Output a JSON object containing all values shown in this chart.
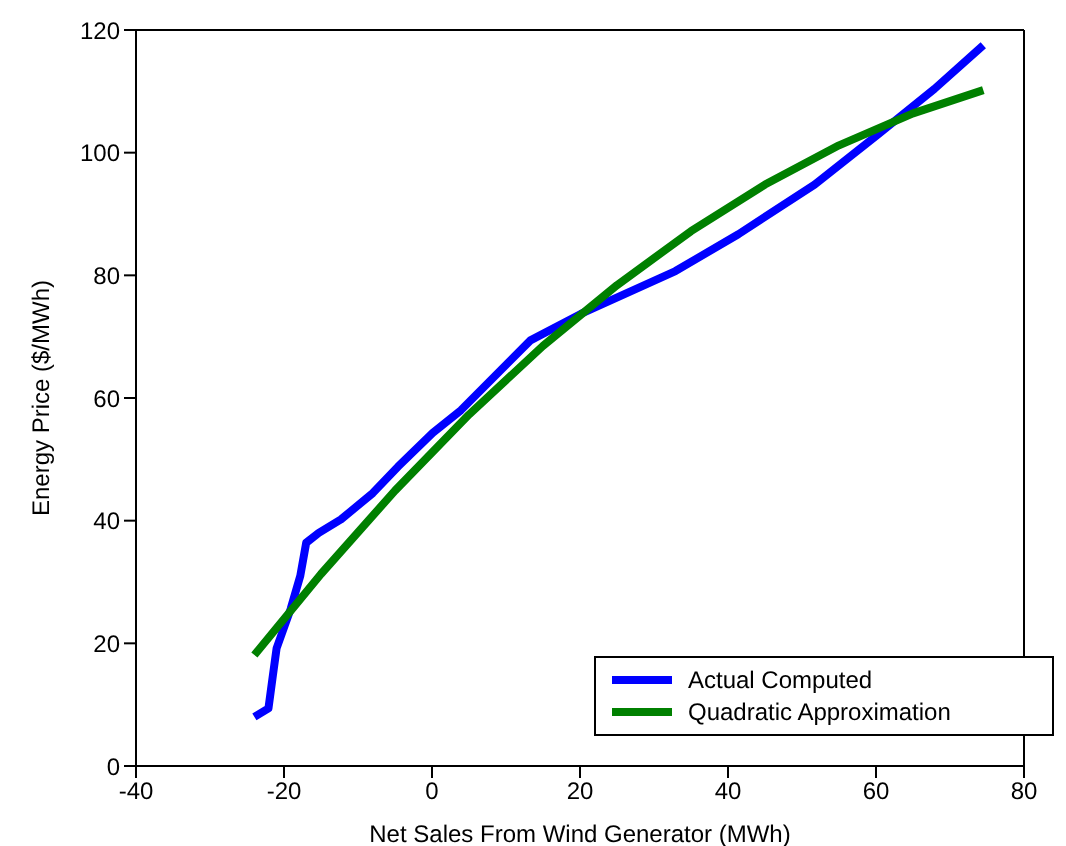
{
  "chart_data": {
    "type": "line",
    "xlabel": "Net Sales From Wind Generator (MWh)",
    "ylabel": "Energy Price ($/MWh)",
    "xlim": [
      -40,
      80
    ],
    "xticks": [
      -40,
      -20,
      0,
      20,
      40,
      60,
      80
    ],
    "ylim": [
      0,
      120
    ],
    "yticks": [
      0,
      20,
      40,
      60,
      80,
      100,
      120
    ],
    "grid": false,
    "legend": "bottom right",
    "marker": "none",
    "line_style": "solid",
    "series": [
      {
        "name": "Actual Computed",
        "color": "#0000ff",
        "x": [
          -24,
          -22.1,
          -21.5,
          -21,
          -19.1,
          -17.8,
          -17,
          -15.3,
          -12.3,
          -8,
          -4.6,
          0.1,
          3.9,
          13.3,
          20.1,
          32.9,
          41.4,
          51.7,
          60.2,
          67.9,
          74.5
        ],
        "values": [
          8,
          9.4,
          14.8,
          19.2,
          25.6,
          31,
          36.4,
          38,
          40.2,
          44.5,
          48.8,
          54.3,
          58,
          69.4,
          73.7,
          80.7,
          86.7,
          94.8,
          102.9,
          110.4,
          117.5
        ]
      },
      {
        "name": "Quadratic Approximation",
        "color": "#008000",
        "x": [
          -24,
          -15,
          -5,
          5,
          15,
          25,
          35,
          45,
          55,
          65,
          74.5
        ],
        "values": [
          18.1,
          31.3,
          44.9,
          57.3,
          68.5,
          78.4,
          87.2,
          94.8,
          101.2,
          106.4,
          110.2
        ]
      }
    ]
  }
}
